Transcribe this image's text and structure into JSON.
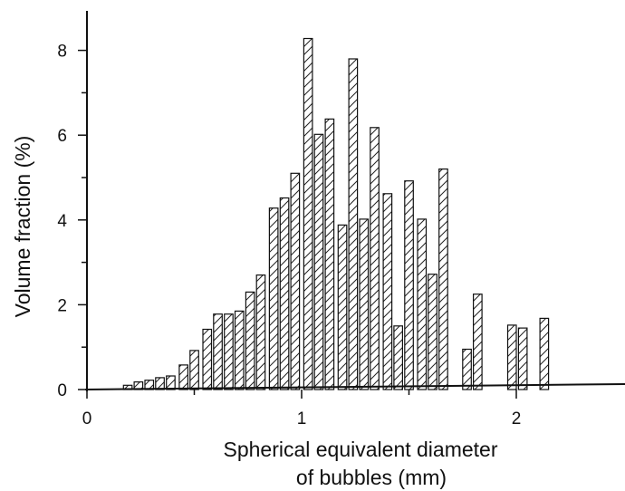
{
  "chart_data": {
    "type": "bar",
    "xlabel_line1": "Spherical equivalent diameter",
    "xlabel_line2": "of bubbles (mm)",
    "ylabel": "Volume fraction (%)",
    "xlim": [
      0,
      2.5
    ],
    "ylim": [
      0,
      9
    ],
    "x_ticks": [
      0,
      1,
      2
    ],
    "y_ticks": [
      0,
      2,
      4,
      6,
      8
    ],
    "grid": false,
    "bar_width_mm": 0.04,
    "bars": [
      {
        "x": 0.19,
        "value": 0.1
      },
      {
        "x": 0.24,
        "value": 0.18
      },
      {
        "x": 0.29,
        "value": 0.22
      },
      {
        "x": 0.34,
        "value": 0.28
      },
      {
        "x": 0.39,
        "value": 0.32
      },
      {
        "x": 0.45,
        "value": 0.58
      },
      {
        "x": 0.5,
        "value": 0.92
      },
      {
        "x": 0.56,
        "value": 1.42
      },
      {
        "x": 0.61,
        "value": 1.78
      },
      {
        "x": 0.66,
        "value": 1.78
      },
      {
        "x": 0.71,
        "value": 1.85
      },
      {
        "x": 0.76,
        "value": 2.3
      },
      {
        "x": 0.81,
        "value": 2.7
      },
      {
        "x": 0.87,
        "value": 4.28
      },
      {
        "x": 0.92,
        "value": 4.52
      },
      {
        "x": 0.97,
        "value": 5.1
      },
      {
        "x": 1.03,
        "value": 8.28
      },
      {
        "x": 1.08,
        "value": 6.02
      },
      {
        "x": 1.13,
        "value": 6.38
      },
      {
        "x": 1.19,
        "value": 3.88
      },
      {
        "x": 1.24,
        "value": 7.8
      },
      {
        "x": 1.29,
        "value": 4.02
      },
      {
        "x": 1.34,
        "value": 6.18
      },
      {
        "x": 1.4,
        "value": 4.62
      },
      {
        "x": 1.45,
        "value": 1.5
      },
      {
        "x": 1.5,
        "value": 4.92
      },
      {
        "x": 1.56,
        "value": 4.02
      },
      {
        "x": 1.61,
        "value": 2.72
      },
      {
        "x": 1.66,
        "value": 5.2
      },
      {
        "x": 1.77,
        "value": 0.95
      },
      {
        "x": 1.82,
        "value": 2.25
      },
      {
        "x": 1.98,
        "value": 1.52
      },
      {
        "x": 2.03,
        "value": 1.45
      },
      {
        "x": 2.13,
        "value": 1.68
      }
    ]
  }
}
